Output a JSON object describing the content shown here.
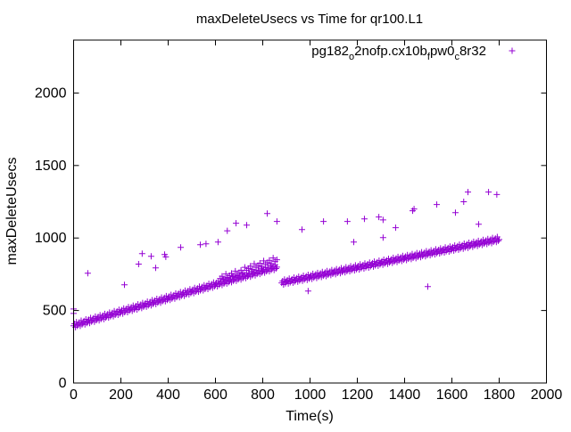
{
  "chart_data": {
    "type": "scatter",
    "title": "maxDeleteUsecs vs Time for qr100.L1",
    "xlabel": "Time(s)",
    "ylabel": "maxDeleteUsecs",
    "xlim": [
      0,
      2000
    ],
    "ylim": [
      0,
      2365
    ],
    "xticks": [
      0,
      200,
      400,
      600,
      800,
      1000,
      1200,
      1400,
      1600,
      1800,
      2000
    ],
    "yticks": [
      0,
      500,
      1000,
      1500,
      2000
    ],
    "grid": false,
    "legend": "top-right",
    "color": "#9400d3",
    "series": [
      {
        "name": "pg182_o2nofp.cx10b_fpw0_c8r32",
        "legend_parts": [
          [
            "pg182",
            ""
          ],
          [
            "o",
            "sub"
          ],
          [
            "2nofp.cx10b",
            ""
          ],
          [
            "f",
            "sub"
          ],
          [
            "pw0",
            ""
          ],
          [
            "c",
            "sub"
          ],
          [
            "8r32",
            ""
          ]
        ],
        "trend_segments": [
          [
            [
              0,
              395
            ],
            [
              20,
              404
            ],
            [
              40,
              414
            ],
            [
              60,
              423
            ],
            [
              80,
              433
            ],
            [
              100,
              442
            ],
            [
              120,
              451
            ],
            [
              140,
              461
            ],
            [
              160,
              470
            ],
            [
              180,
              480
            ],
            [
              200,
              489
            ],
            [
              220,
              498
            ],
            [
              240,
              508
            ],
            [
              260,
              517
            ],
            [
              280,
              527
            ],
            [
              300,
              536
            ],
            [
              320,
              545
            ],
            [
              340,
              555
            ],
            [
              360,
              564
            ],
            [
              380,
              574
            ],
            [
              400,
              583
            ],
            [
              420,
              592
            ],
            [
              440,
              602
            ],
            [
              460,
              611
            ],
            [
              480,
              621
            ],
            [
              500,
              630
            ],
            [
              520,
              639
            ],
            [
              540,
              649
            ],
            [
              560,
              658
            ],
            [
              580,
              668
            ],
            [
              600,
              677
            ],
            [
              620,
              686
            ],
            [
              640,
              696
            ],
            [
              660,
              705
            ],
            [
              680,
              715
            ],
            [
              700,
              724
            ],
            [
              720,
              733
            ],
            [
              740,
              743
            ],
            [
              760,
              752
            ],
            [
              780,
              762
            ],
            [
              800,
              771
            ],
            [
              820,
              780
            ],
            [
              840,
              790
            ],
            [
              860,
              799
            ]
          ],
          [
            [
              620,
              720
            ],
            [
              660,
              740
            ],
            [
              700,
              760
            ],
            [
              740,
              790
            ],
            [
              780,
              810
            ],
            [
              820,
              830
            ],
            [
              860,
              850
            ]
          ],
          [
            [
              880,
              690
            ],
            [
              900,
              697
            ],
            [
              920,
              703
            ],
            [
              940,
              710
            ],
            [
              960,
              716
            ],
            [
              980,
              723
            ],
            [
              1000,
              729
            ],
            [
              1020,
              736
            ],
            [
              1040,
              742
            ],
            [
              1060,
              749
            ],
            [
              1080,
              755
            ],
            [
              1100,
              762
            ],
            [
              1120,
              768
            ],
            [
              1140,
              775
            ],
            [
              1160,
              781
            ],
            [
              1180,
              788
            ],
            [
              1200,
              794
            ],
            [
              1220,
              801
            ],
            [
              1240,
              807
            ],
            [
              1260,
              814
            ],
            [
              1280,
              820
            ],
            [
              1300,
              827
            ],
            [
              1320,
              833
            ],
            [
              1340,
              840
            ],
            [
              1360,
              846
            ],
            [
              1380,
              853
            ],
            [
              1400,
              859
            ],
            [
              1420,
              866
            ],
            [
              1440,
              872
            ],
            [
              1460,
              879
            ],
            [
              1480,
              885
            ],
            [
              1500,
              892
            ],
            [
              1520,
              898
            ],
            [
              1540,
              905
            ],
            [
              1560,
              911
            ],
            [
              1580,
              918
            ],
            [
              1600,
              924
            ],
            [
              1620,
              931
            ],
            [
              1640,
              937
            ],
            [
              1660,
              944
            ],
            [
              1680,
              950
            ],
            [
              1700,
              957
            ],
            [
              1720,
              963
            ],
            [
              1740,
              970
            ],
            [
              1760,
              976
            ],
            [
              1780,
              983
            ],
            [
              1800,
              990
            ]
          ]
        ],
        "outliers": [
          [
            0,
            511
          ],
          [
            0,
            480
          ],
          [
            60,
            757
          ],
          [
            215,
            677
          ],
          [
            275,
            820
          ],
          [
            290,
            892
          ],
          [
            328,
            874
          ],
          [
            347,
            794
          ],
          [
            385,
            886
          ],
          [
            390,
            870
          ],
          [
            453,
            935
          ],
          [
            536,
            954
          ],
          [
            560,
            960
          ],
          [
            611,
            972
          ],
          [
            650,
            1050
          ],
          [
            687,
            1102
          ],
          [
            732,
            1089
          ],
          [
            819,
            1169
          ],
          [
            860,
            1114
          ],
          [
            966,
            1058
          ],
          [
            992,
            634
          ],
          [
            1057,
            1114
          ],
          [
            1158,
            1114
          ],
          [
            1185,
            972
          ],
          [
            1230,
            1132
          ],
          [
            1291,
            1145
          ],
          [
            1309,
            1125
          ],
          [
            1309,
            1003
          ],
          [
            1362,
            1071
          ],
          [
            1434,
            1188
          ],
          [
            1440,
            1200
          ],
          [
            1498,
            665
          ],
          [
            1536,
            1231
          ],
          [
            1615,
            1175
          ],
          [
            1650,
            1250
          ],
          [
            1668,
            1317
          ],
          [
            1713,
            1095
          ],
          [
            1755,
            1317
          ],
          [
            1790,
            1300
          ]
        ]
      }
    ]
  }
}
